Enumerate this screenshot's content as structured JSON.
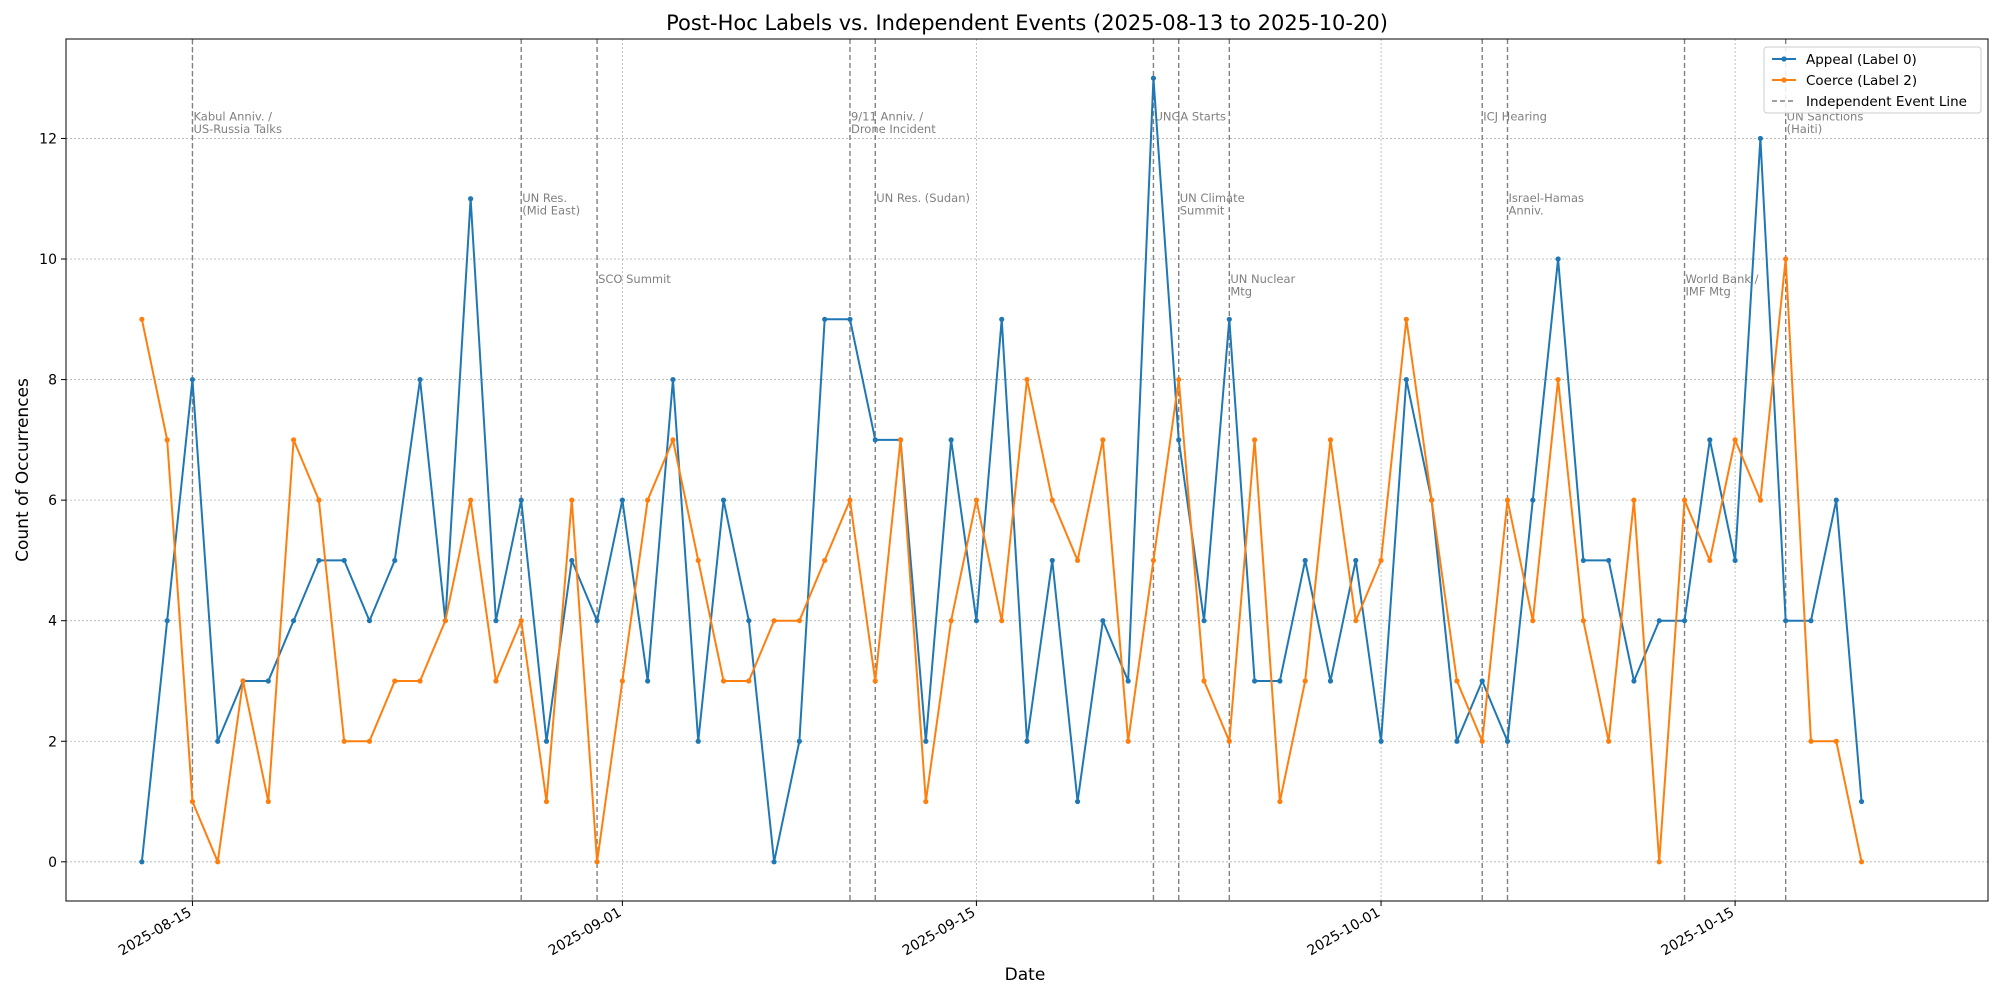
{
  "chart_data": {
    "type": "line",
    "title": "Post-Hoc Labels vs. Independent Events (2025-08-13 to 2025-10-20)",
    "xlabel": "Date",
    "ylabel": "Count of Occurrences",
    "xlim": [
      "2025-08-10",
      "2025-10-25"
    ],
    "ylim": [
      -0.65,
      13.65
    ],
    "x_ticks": [
      "2025-08-15",
      "2025-09-01",
      "2025-09-15",
      "2025-10-01",
      "2025-10-15"
    ],
    "y_ticks": [
      0,
      2,
      4,
      6,
      8,
      10,
      12
    ],
    "grid": true,
    "legend_position": "top-right",
    "start_date": "2025-08-13",
    "series": [
      {
        "name": "Appeal (Label 0)",
        "color": "#1f77b4",
        "values": [
          0,
          4,
          8,
          2,
          3,
          3,
          4,
          5,
          5,
          4,
          5,
          8,
          4,
          11,
          4,
          6,
          2,
          5,
          4,
          6,
          3,
          8,
          2,
          6,
          4,
          0,
          2,
          9,
          9,
          7,
          7,
          2,
          7,
          4,
          9,
          2,
          5,
          1,
          4,
          3,
          13,
          7,
          4,
          9,
          3,
          3,
          5,
          3,
          5,
          2,
          8,
          6,
          2,
          3,
          2,
          6,
          10,
          5,
          5,
          3,
          4,
          4,
          7,
          5,
          12,
          4,
          4,
          6,
          1
        ]
      },
      {
        "name": "Coerce (Label 2)",
        "color": "#ff7f0e",
        "values": [
          9,
          7,
          1,
          0,
          3,
          1,
          7,
          6,
          2,
          2,
          3,
          3,
          4,
          6,
          3,
          4,
          1,
          6,
          0,
          3,
          6,
          7,
          5,
          3,
          3,
          4,
          4,
          5,
          6,
          3,
          7,
          1,
          4,
          6,
          4,
          8,
          6,
          5,
          7,
          2,
          5,
          8,
          3,
          2,
          7,
          1,
          3,
          7,
          4,
          5,
          9,
          6,
          3,
          2,
          6,
          4,
          8,
          4,
          2,
          6,
          0,
          6,
          5,
          7,
          6,
          10,
          2,
          2,
          0
        ]
      }
    ],
    "event_series_name": "Independent Event Line",
    "events": [
      {
        "date": "2025-08-15",
        "label_lines": [
          "Kabul Anniv. /",
          "US-Russia Talks"
        ],
        "label_y": 12.3
      },
      {
        "date": "2025-08-28",
        "label_lines": [
          "UN Res.",
          "(Mid East)"
        ],
        "label_y": 10.95
      },
      {
        "date": "2025-08-31",
        "label_lines": [
          "SCO Summit"
        ],
        "label_y": 9.6
      },
      {
        "date": "2025-09-10",
        "label_lines": [
          "9/11 Anniv. /",
          "Drone Incident"
        ],
        "label_y": 12.3
      },
      {
        "date": "2025-09-11",
        "label_lines": [
          "UN Res. (Sudan)"
        ],
        "label_y": 10.95
      },
      {
        "date": "2025-09-22",
        "label_lines": [
          "UNGA Starts"
        ],
        "label_y": 12.3
      },
      {
        "date": "2025-09-23",
        "label_lines": [
          "UN Climate",
          "Summit"
        ],
        "label_y": 10.95
      },
      {
        "date": "2025-09-25",
        "label_lines": [
          "UN Nuclear",
          "Mtg"
        ],
        "label_y": 9.6
      },
      {
        "date": "2025-10-05",
        "label_lines": [
          "ICJ Hearing"
        ],
        "label_y": 12.3
      },
      {
        "date": "2025-10-06",
        "label_lines": [
          "Israel-Hamas",
          "Anniv."
        ],
        "label_y": 10.95
      },
      {
        "date": "2025-10-13",
        "label_lines": [
          "World Bank /",
          "IMF Mtg"
        ],
        "label_y": 9.6
      },
      {
        "date": "2025-10-17",
        "label_lines": [
          "UN Sanctions",
          "(Haiti)"
        ],
        "label_y": 12.3
      }
    ]
  }
}
